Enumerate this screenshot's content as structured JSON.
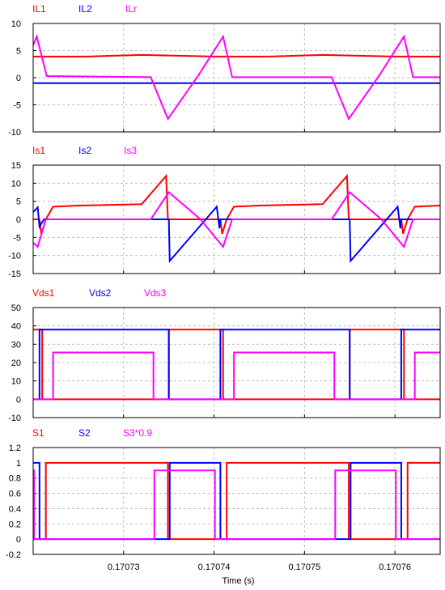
{
  "xaxis": {
    "label": "Time (s)",
    "range": [
      0.17072,
      0.170765
    ],
    "ticks": [
      0.17073,
      0.17074,
      0.17075,
      0.17076
    ],
    "tick_labels": [
      "0.17073",
      "0.17074",
      "0.17075",
      "0.17076"
    ]
  },
  "chart_data": [
    {
      "type": "line",
      "title": "",
      "ylim": [
        -10,
        10
      ],
      "yticks": [
        -10,
        -5,
        0,
        5,
        10
      ],
      "grid": true,
      "legend_position": "top-left",
      "series": [
        {
          "name": "IL1",
          "color": "#ff0000",
          "x": [
            0.17072,
            0.170726,
            0.170732,
            0.17074,
            0.170746,
            0.170752,
            0.17076,
            0.170765
          ],
          "y": [
            3.9,
            3.9,
            4.2,
            3.9,
            3.9,
            4.2,
            3.9,
            3.9
          ]
        },
        {
          "name": "IL2",
          "color": "#0000ff",
          "x": [
            0.17072,
            0.170765
          ],
          "y": [
            -1,
            -1
          ]
        },
        {
          "name": "ILr",
          "color": "#ff00ff",
          "x": [
            0.17072,
            0.17072,
            0.1707204,
            0.1707215,
            0.170733,
            0.1707349,
            0.1707383,
            0.170741,
            0.170742,
            0.170753,
            0.1707549,
            0.1707583,
            0.170761,
            0.170762,
            0.170765
          ],
          "y": [
            6,
            6,
            7.6,
            0.3,
            0.1,
            -7.6,
            0.5,
            7.6,
            0.1,
            0.1,
            -7.6,
            0.5,
            7.6,
            0.1,
            0.1
          ]
        }
      ]
    },
    {
      "type": "line",
      "title": "",
      "ylim": [
        -15,
        15
      ],
      "yticks": [
        -15,
        -10,
        -5,
        0,
        5,
        10,
        15
      ],
      "grid": true,
      "legend_position": "top-left",
      "series": [
        {
          "name": "Is1",
          "color": "#ff0000",
          "x": [
            0.17072,
            0.1707207,
            0.1707209,
            0.1707214,
            0.1707222,
            0.170725,
            0.170732,
            0.1707347,
            0.1707349,
            0.17074,
            0.1707407,
            0.1707409,
            0.1707414,
            0.1707422,
            0.170745,
            0.170752,
            0.1707547,
            0.1707549,
            0.17076,
            0.1707607,
            0.1707609,
            0.1707614,
            0.1707622,
            0.170765
          ],
          "y": [
            0,
            0,
            -4,
            0,
            3.5,
            3.8,
            4.2,
            12,
            0,
            0,
            0,
            -4,
            0,
            3.5,
            3.8,
            4.2,
            12,
            0,
            0,
            0,
            -4,
            0,
            3.5,
            3.8
          ]
        },
        {
          "name": "Is2",
          "color": "#0000ff",
          "x": [
            0.17072,
            0.1707205,
            0.1707207,
            0.1707212,
            0.170735,
            0.1707351,
            0.1707403,
            0.1707406,
            0.1707407,
            0.1707409,
            0.1707413,
            0.170755,
            0.1707551,
            0.1707603,
            0.1707606,
            0.1707607,
            0.1707609,
            0.1707613,
            0.170765
          ],
          "y": [
            2,
            3.3,
            -2,
            0,
            0,
            -11.5,
            3.5,
            -2.5,
            0,
            0,
            0,
            0,
            -11.5,
            3.5,
            -2.5,
            0,
            0,
            0,
            0
          ]
        },
        {
          "name": "Is3",
          "color": "#ff00ff",
          "x": [
            0.17072,
            0.1707205,
            0.1707214,
            0.170733,
            0.170735,
            0.1707385,
            0.170741,
            0.170742,
            0.170753,
            0.170755,
            0.1707585,
            0.170761,
            0.170762,
            0.170765
          ],
          "y": [
            -6.5,
            -7.6,
            0,
            0,
            7.5,
            0,
            -7.6,
            0,
            0,
            7.5,
            0,
            -7.6,
            0,
            0
          ]
        }
      ]
    },
    {
      "type": "line",
      "title": "",
      "ylim": [
        -10,
        50
      ],
      "yticks": [
        -10,
        0,
        10,
        20,
        30,
        40,
        50
      ],
      "grid": true,
      "legend_position": "top-left",
      "series": [
        {
          "name": "Vds1",
          "color": "#ff0000",
          "x": [
            0.17072,
            0.170721,
            0.170721,
            0.170735,
            0.170735,
            0.170741,
            0.170741,
            0.170755,
            0.170755,
            0.170761,
            0.170761,
            0.170765
          ],
          "y": [
            38,
            38,
            0,
            0,
            38,
            38,
            0,
            0,
            38,
            38,
            0,
            0
          ]
        },
        {
          "name": "Vds2",
          "color": "#0000ff",
          "x": [
            0.17072,
            0.1707207,
            0.1707207,
            0.170735,
            0.170735,
            0.1707407,
            0.1707407,
            0.170755,
            0.170755,
            0.1707607,
            0.1707607,
            0.170765
          ],
          "y": [
            0,
            0,
            38,
            38,
            0,
            0,
            38,
            38,
            0,
            0,
            38,
            38
          ]
        },
        {
          "name": "Vds3",
          "color": "#ff00ff",
          "x": [
            0.17072,
            0.1707222,
            0.1707222,
            0.1707333,
            0.1707333,
            0.1707422,
            0.1707422,
            0.1707533,
            0.1707533,
            0.1707622,
            0.1707622,
            0.170765
          ],
          "y": [
            0,
            0,
            25.5,
            25.5,
            0,
            0,
            25.5,
            25.5,
            0,
            0,
            25.5,
            25.5
          ]
        }
      ]
    },
    {
      "type": "line",
      "title": "",
      "ylim": [
        -0.2,
        1.2
      ],
      "yticks": [
        -0.2,
        0,
        0.2,
        0.4,
        0.6,
        0.8,
        1,
        1.2
      ],
      "grid": true,
      "legend_position": "top-left",
      "series": [
        {
          "name": "S1",
          "color": "#ff0000",
          "x": [
            0.17072,
            0.1707214,
            0.1707214,
            0.1707349,
            0.1707349,
            0.1707414,
            0.1707414,
            0.1707549,
            0.1707549,
            0.1707614,
            0.1707614,
            0.170765
          ],
          "y": [
            0,
            0,
            1,
            1,
            0,
            0,
            1,
            1,
            0,
            0,
            1,
            1
          ]
        },
        {
          "name": "S2",
          "color": "#0000ff",
          "x": [
            0.17072,
            0.1707207,
            0.1707207,
            0.1707351,
            0.1707351,
            0.1707407,
            0.1707407,
            0.1707551,
            0.1707551,
            0.1707607,
            0.1707607,
            0.170765
          ],
          "y": [
            1,
            1,
            0,
            0,
            1,
            1,
            0,
            0,
            1,
            1,
            0,
            0
          ]
        },
        {
          "name": "S3*0.9",
          "color": "#ff00ff",
          "x": [
            0.17072,
            0.1707201,
            0.1707201,
            0.1707334,
            0.1707334,
            0.1707401,
            0.1707401,
            0.1707534,
            0.1707534,
            0.1707601,
            0.1707601,
            0.170765
          ],
          "y": [
            0.9,
            0.9,
            0,
            0,
            0.9,
            0.9,
            0,
            0,
            0.9,
            0.9,
            0,
            0
          ]
        }
      ]
    }
  ]
}
